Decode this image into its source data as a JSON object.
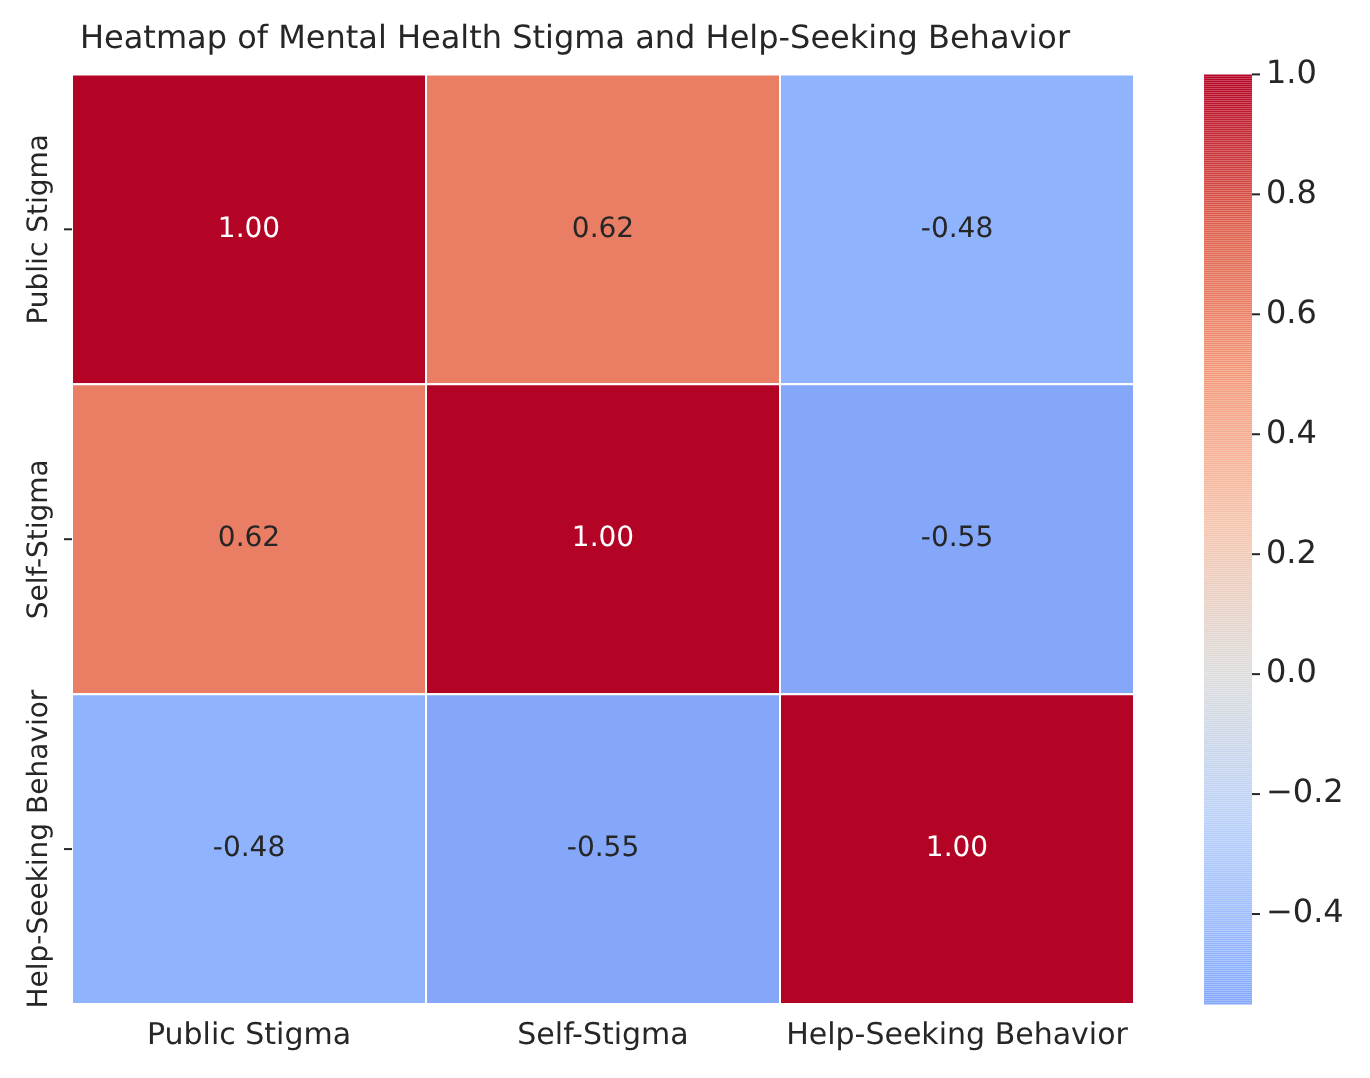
{
  "chart_data": {
    "type": "heatmap",
    "title": "Heatmap of Mental Health Stigma and Help-Seeking Behavior",
    "categories": [
      "Public Stigma",
      "Self-Stigma",
      "Help-Seeking Behavior"
    ],
    "y_categories": [
      "Public Stigma",
      "Self-Stigma",
      "Help-Seeking Behavior"
    ],
    "cells": [
      [
        1.0,
        0.62,
        -0.48
      ],
      [
        0.62,
        1.0,
        -0.55
      ],
      [
        -0.48,
        -0.55,
        1.0
      ]
    ],
    "cell_labels": [
      [
        "1.00",
        "0.62",
        "-0.48"
      ],
      [
        "0.62",
        "1.00",
        "-0.55"
      ],
      [
        "-0.48",
        "-0.55",
        "1.00"
      ]
    ],
    "clim": [
      -0.55,
      1.0
    ],
    "cticks": [
      {
        "value": -0.4,
        "label": "−0.4"
      },
      {
        "value": -0.2,
        "label": "−0.2"
      },
      {
        "value": 0,
        "label": "0.0"
      },
      {
        "value": 0.2,
        "label": "0.2"
      },
      {
        "value": 0.4,
        "label": "0.4"
      },
      {
        "value": 0.6,
        "label": "0.6"
      },
      {
        "value": 0.8,
        "label": "0.8"
      },
      {
        "value": 1.0,
        "label": "1.0"
      }
    ]
  }
}
